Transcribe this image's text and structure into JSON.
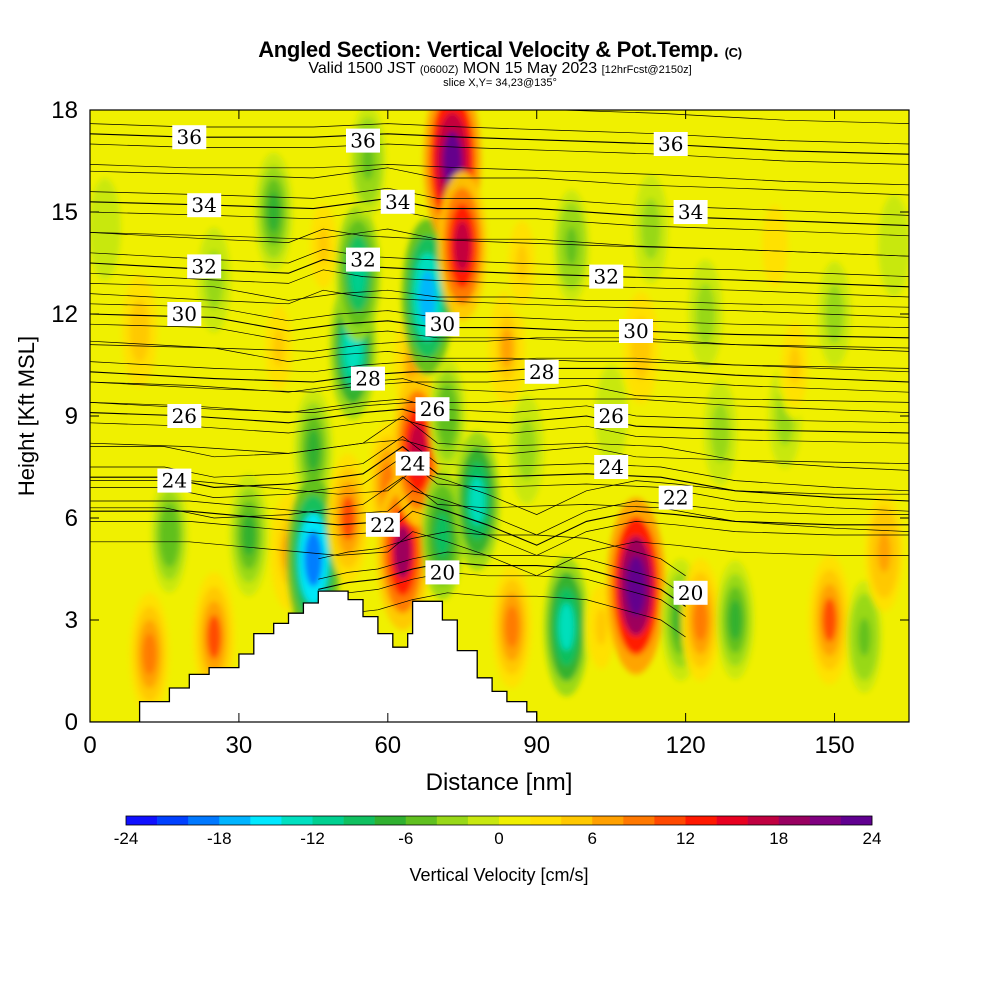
{
  "header": {
    "title": "Angled Section: Vertical Velocity & Pot.Temp.",
    "title_unit": "(C)",
    "valid_prefix": "Valid 1500 JST",
    "valid_utc": "(0600Z)",
    "valid_date": "MON 15 May 2023",
    "forecast_info": "[12hrFcst@2150z]",
    "slice_info": "slice X,Y= 34,23@135°"
  },
  "chart_data": {
    "type": "heatmap",
    "xlabel": "Distance [nm]",
    "ylabel": "Height [Kft MSL]",
    "x_ticks": [
      0,
      30,
      60,
      90,
      120,
      150
    ],
    "y_ticks": [
      0,
      3,
      6,
      9,
      12,
      15,
      18
    ],
    "xlim": [
      0,
      165
    ],
    "ylim": [
      0,
      18
    ],
    "colorbar": {
      "label": "Vertical Velocity [cm/s]",
      "ticks": [
        -24,
        -18,
        -12,
        -6,
        0,
        6,
        12,
        18,
        24
      ],
      "range": [
        -24,
        24
      ],
      "colors": [
        "#1010ff",
        "#0040ff",
        "#0078ff",
        "#00b4ff",
        "#00e8ff",
        "#00e0c0",
        "#00d090",
        "#10c060",
        "#30b030",
        "#60c020",
        "#98d818",
        "#c8e810",
        "#f0f000",
        "#ffe000",
        "#ffc800",
        "#ffa000",
        "#ff7800",
        "#ff4800",
        "#ff1800",
        "#e80020",
        "#c00040",
        "#980060",
        "#800080",
        "#600090"
      ]
    },
    "vertical_velocity_cells": [
      {
        "x": 3,
        "y": 14.5,
        "w": -2
      },
      {
        "x": 10,
        "y": 11.5,
        "w": 5
      },
      {
        "x": 12,
        "y": 2,
        "w": 8
      },
      {
        "x": 16,
        "y": 5.5,
        "w": -6
      },
      {
        "x": 25,
        "y": 2.5,
        "w": 10
      },
      {
        "x": 25,
        "y": 13,
        "w": -3
      },
      {
        "x": 32,
        "y": 5.5,
        "w": -8
      },
      {
        "x": 37,
        "y": 15,
        "w": -7
      },
      {
        "x": 38,
        "y": 11,
        "w": 4
      },
      {
        "x": 40,
        "y": 5,
        "w": 6
      },
      {
        "x": 45,
        "y": 8,
        "w": -8
      },
      {
        "x": 45,
        "y": 4.8,
        "w": -20
      },
      {
        "x": 47,
        "y": 14,
        "w": 4
      },
      {
        "x": 52,
        "y": 6,
        "w": 10
      },
      {
        "x": 53,
        "y": 11,
        "w": -14
      },
      {
        "x": 54,
        "y": 13.2,
        "w": -12
      },
      {
        "x": 56,
        "y": 16.5,
        "w": -5
      },
      {
        "x": 60,
        "y": 7,
        "w": 8
      },
      {
        "x": 63,
        "y": 5,
        "w": 18
      },
      {
        "x": 65,
        "y": 10.5,
        "w": 6
      },
      {
        "x": 66,
        "y": 8,
        "w": 17
      },
      {
        "x": 68,
        "y": 12.5,
        "w": -18
      },
      {
        "x": 71,
        "y": 5.5,
        "w": -10
      },
      {
        "x": 72,
        "y": 9,
        "w": -6
      },
      {
        "x": 73,
        "y": 16.5,
        "w": 23
      },
      {
        "x": 75,
        "y": 14,
        "w": 16
      },
      {
        "x": 78,
        "y": 6.5,
        "w": -13
      },
      {
        "x": 84,
        "y": 11,
        "w": 6
      },
      {
        "x": 85,
        "y": 2.8,
        "w": 8
      },
      {
        "x": 87,
        "y": 13.5,
        "w": 4
      },
      {
        "x": 88,
        "y": 8,
        "w": -4
      },
      {
        "x": 96,
        "y": 2.8,
        "w": -13
      },
      {
        "x": 97,
        "y": 14,
        "w": -5
      },
      {
        "x": 103,
        "y": 2.8,
        "w": 4
      },
      {
        "x": 105,
        "y": 9,
        "w": -2
      },
      {
        "x": 110,
        "y": 4,
        "w": 24
      },
      {
        "x": 111,
        "y": 11,
        "w": 5
      },
      {
        "x": 113,
        "y": 14.5,
        "w": -4
      },
      {
        "x": 119,
        "y": 3,
        "w": -8
      },
      {
        "x": 123,
        "y": 3,
        "w": 8
      },
      {
        "x": 124,
        "y": 12,
        "w": -4
      },
      {
        "x": 127,
        "y": 8.5,
        "w": -3
      },
      {
        "x": 130,
        "y": 3,
        "w": -7
      },
      {
        "x": 138,
        "y": 14,
        "w": 3
      },
      {
        "x": 140,
        "y": 9,
        "w": -3
      },
      {
        "x": 142,
        "y": 10.5,
        "w": 4
      },
      {
        "x": 149,
        "y": 3,
        "w": 10
      },
      {
        "x": 150,
        "y": 12,
        "w": -3
      },
      {
        "x": 156,
        "y": 2.5,
        "w": -5
      },
      {
        "x": 160,
        "y": 5,
        "w": 7
      },
      {
        "x": 162,
        "y": 14,
        "w": -2
      }
    ],
    "terrain": [
      [
        0,
        0
      ],
      [
        10,
        0
      ],
      [
        10,
        0.6
      ],
      [
        16,
        0.6
      ],
      [
        16,
        1
      ],
      [
        20,
        1
      ],
      [
        20,
        1.4
      ],
      [
        24,
        1.4
      ],
      [
        24,
        1.6
      ],
      [
        30,
        1.6
      ],
      [
        30,
        2
      ],
      [
        33,
        2
      ],
      [
        33,
        2.6
      ],
      [
        37,
        2.6
      ],
      [
        37,
        2.9
      ],
      [
        40,
        2.9
      ],
      [
        40,
        3.2
      ],
      [
        43,
        3.2
      ],
      [
        43,
        3.5
      ],
      [
        46,
        3.5
      ],
      [
        46,
        3.85
      ],
      [
        52,
        3.85
      ],
      [
        52,
        3.6
      ],
      [
        55,
        3.6
      ],
      [
        55,
        3.1
      ],
      [
        58,
        3.1
      ],
      [
        58,
        2.6
      ],
      [
        61,
        2.6
      ],
      [
        61,
        2.2
      ],
      [
        64,
        2.2
      ],
      [
        64,
        2.6
      ],
      [
        65,
        2.6
      ],
      [
        65,
        3.55
      ],
      [
        71,
        3.55
      ],
      [
        71,
        3.0
      ],
      [
        74,
        3.0
      ],
      [
        74,
        2.1
      ],
      [
        78,
        2.1
      ],
      [
        78,
        1.3
      ],
      [
        81,
        1.3
      ],
      [
        81,
        0.9
      ],
      [
        84,
        0.9
      ],
      [
        84,
        0.6
      ],
      [
        88,
        0.6
      ],
      [
        88,
        0.3
      ],
      [
        90,
        0.3
      ],
      [
        90,
        0
      ],
      [
        165,
        0
      ]
    ],
    "theta_contours": [
      {
        "level": 20,
        "label_at": [
          70,
          4.3
        ],
        "points": [
          [
            46,
            3.9
          ],
          [
            52,
            4.1
          ],
          [
            58,
            4.2
          ],
          [
            65,
            4.5
          ],
          [
            72,
            4.7
          ],
          [
            80,
            4.6
          ],
          [
            90,
            4.6
          ],
          [
            100,
            4.5
          ],
          [
            105,
            4.3
          ],
          [
            115,
            3.9
          ],
          [
            120,
            3.4
          ]
        ]
      },
      {
        "level": 22,
        "label_at": [
          59,
          5.8
        ],
        "points": [
          [
            0,
            6.2
          ],
          [
            20,
            6.2
          ],
          [
            35,
            6.0
          ],
          [
            50,
            5.8
          ],
          [
            60,
            5.9
          ],
          [
            65,
            6.5
          ],
          [
            72,
            6.2
          ],
          [
            80,
            5.8
          ],
          [
            90,
            5.2
          ],
          [
            100,
            5.9
          ],
          [
            110,
            6.2
          ],
          [
            118,
            6.1
          ],
          [
            130,
            5.9
          ],
          [
            150,
            5.8
          ],
          [
            165,
            5.8
          ]
        ]
      },
      {
        "level": 24,
        "label_at": [
          17,
          7.1
        ],
        "points": [
          [
            0,
            7.2
          ],
          [
            15,
            7.2
          ],
          [
            25,
            6.9
          ],
          [
            40,
            7.0
          ],
          [
            55,
            7.3
          ],
          [
            63,
            8.1
          ],
          [
            70,
            7.3
          ],
          [
            80,
            7.2
          ],
          [
            100,
            7.3
          ],
          [
            115,
            7.2
          ],
          [
            130,
            6.8
          ],
          [
            150,
            6.6
          ],
          [
            165,
            6.5
          ]
        ]
      },
      {
        "level": 26,
        "label_at": [
          19,
          9.0
        ],
        "points": [
          [
            0,
            9.1
          ],
          [
            20,
            9.0
          ],
          [
            40,
            8.8
          ],
          [
            55,
            9.1
          ],
          [
            63,
            9.2
          ],
          [
            70,
            8.9
          ],
          [
            85,
            8.8
          ],
          [
            100,
            9.0
          ],
          [
            110,
            8.7
          ],
          [
            130,
            8.6
          ],
          [
            165,
            8.5
          ]
        ]
      },
      {
        "level": 28,
        "label_at": [
          55,
          10.1
        ],
        "points": [
          [
            0,
            10.3
          ],
          [
            25,
            10.1
          ],
          [
            45,
            10.0
          ],
          [
            55,
            10.2
          ],
          [
            65,
            10.3
          ],
          [
            80,
            10.3
          ],
          [
            90,
            10.4
          ],
          [
            110,
            10.4
          ],
          [
            130,
            10.2
          ],
          [
            165,
            10.0
          ]
        ]
      },
      {
        "level": 30,
        "label_at": [
          19,
          12.0
        ],
        "points": [
          [
            0,
            12.0
          ],
          [
            25,
            11.9
          ],
          [
            40,
            11.5
          ],
          [
            50,
            11.7
          ],
          [
            60,
            11.8
          ],
          [
            70,
            11.6
          ],
          [
            85,
            11.6
          ],
          [
            100,
            11.5
          ],
          [
            110,
            11.5
          ],
          [
            130,
            11.4
          ],
          [
            165,
            11.3
          ]
        ]
      },
      {
        "level": 32,
        "label_at": [
          23,
          13.4
        ],
        "points": [
          [
            0,
            13.5
          ],
          [
            25,
            13.3
          ],
          [
            40,
            13.2
          ],
          [
            47,
            13.6
          ],
          [
            55,
            13.4
          ],
          [
            68,
            13.3
          ],
          [
            85,
            13.2
          ],
          [
            105,
            13.1
          ],
          [
            130,
            13.0
          ],
          [
            165,
            12.8
          ]
        ]
      },
      {
        "level": 34,
        "label_at": [
          23,
          15.2
        ],
        "points": [
          [
            0,
            15.3
          ],
          [
            25,
            15.2
          ],
          [
            45,
            15.1
          ],
          [
            60,
            15.4
          ],
          [
            70,
            15.1
          ],
          [
            90,
            15.1
          ],
          [
            110,
            14.9
          ],
          [
            130,
            14.8
          ],
          [
            165,
            14.6
          ]
        ]
      },
      {
        "level": 36,
        "label_at": [
          20,
          17.2
        ],
        "points": [
          [
            0,
            17.3
          ],
          [
            20,
            17.2
          ],
          [
            45,
            17.2
          ],
          [
            60,
            17.3
          ],
          [
            75,
            17.2
          ],
          [
            95,
            17.1
          ],
          [
            115,
            17.0
          ],
          [
            140,
            16.8
          ],
          [
            165,
            16.7
          ]
        ]
      }
    ],
    "contour_labels": [
      {
        "text": "36",
        "x": 20,
        "y": 17.2
      },
      {
        "text": "36",
        "x": 55,
        "y": 17.1
      },
      {
        "text": "36",
        "x": 117,
        "y": 17.0
      },
      {
        "text": "34",
        "x": 23,
        "y": 15.2
      },
      {
        "text": "34",
        "x": 62,
        "y": 15.3
      },
      {
        "text": "34",
        "x": 121,
        "y": 15.0
      },
      {
        "text": "32",
        "x": 23,
        "y": 13.4
      },
      {
        "text": "32",
        "x": 55,
        "y": 13.6
      },
      {
        "text": "32",
        "x": 104,
        "y": 13.1
      },
      {
        "text": "30",
        "x": 19,
        "y": 12.0
      },
      {
        "text": "30",
        "x": 71,
        "y": 11.7
      },
      {
        "text": "30",
        "x": 110,
        "y": 11.5
      },
      {
        "text": "28",
        "x": 56,
        "y": 10.1
      },
      {
        "text": "28",
        "x": 91,
        "y": 10.3
      },
      {
        "text": "26",
        "x": 19,
        "y": 9.0
      },
      {
        "text": "26",
        "x": 69,
        "y": 9.2
      },
      {
        "text": "26",
        "x": 105,
        "y": 9.0
      },
      {
        "text": "24",
        "x": 17,
        "y": 7.1
      },
      {
        "text": "24",
        "x": 65,
        "y": 7.6
      },
      {
        "text": "24",
        "x": 105,
        "y": 7.5
      },
      {
        "text": "22",
        "x": 59,
        "y": 5.8
      },
      {
        "text": "22",
        "x": 118,
        "y": 6.6
      },
      {
        "text": "20",
        "x": 71,
        "y": 4.4
      },
      {
        "text": "20",
        "x": 121,
        "y": 3.8
      }
    ]
  }
}
